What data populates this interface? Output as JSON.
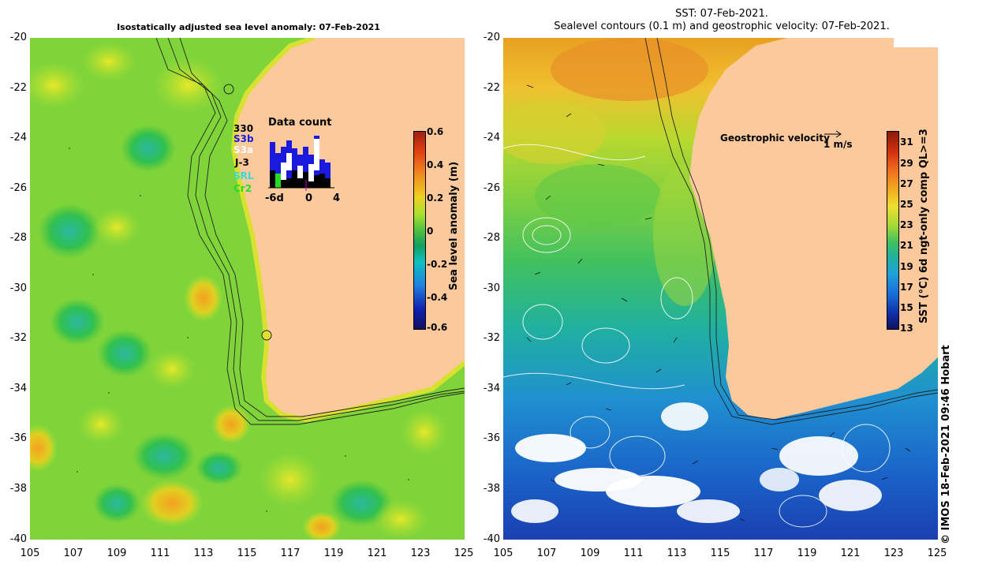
{
  "left_map": {
    "title": "Isostatically adjusted sea level anomaly: 07-Feb-2021",
    "colorbar": {
      "label": "Sea level anomaly (m)",
      "ticks": [
        "0.6",
        "0.4",
        "0.2",
        "0",
        "-0.2",
        "-0.4",
        "-0.6"
      ],
      "range": [
        -0.6,
        0.6
      ]
    },
    "data_count": {
      "title": "Data count",
      "max_label": "330",
      "satellites": [
        "S3b",
        "S3a",
        "J-3",
        "SRL",
        "Cr2"
      ],
      "satellite_colors": [
        "#1a1adf",
        "#ffffff",
        "#000000",
        "#33dddd",
        "#22dd22"
      ],
      "x_ticks": [
        "-6d",
        "0",
        "4"
      ]
    }
  },
  "right_map": {
    "title_line1": "SST: 07-Feb-2021.",
    "title_line2": "Sealevel contours (0.1 m) and geostrophic velocity: 07-Feb-2021.",
    "velocity_legend": "Geostrophic velocity",
    "velocity_scale": "1 m/s",
    "colorbar": {
      "label": "SST (°C) 6d ngt-only comp QL>=3",
      "ticks": [
        "31",
        "29",
        "27",
        "25",
        "23",
        "21",
        "19",
        "17",
        "15",
        "13"
      ],
      "range": [
        13,
        32
      ]
    }
  },
  "axes": {
    "latitude_ticks": [
      "-20",
      "-22",
      "-24",
      "-26",
      "-28",
      "-30",
      "-32",
      "-34",
      "-36",
      "-38",
      "-40"
    ],
    "longitude_ticks": [
      "105",
      "107",
      "109",
      "111",
      "113",
      "115",
      "117",
      "119",
      "121",
      "123",
      "125"
    ]
  },
  "colors": {
    "land": "#fbc99b",
    "sla_background": "#7fd43a",
    "sst_warm": "#e0801a",
    "sst_cool": "#1a8ad0"
  },
  "credit": "© IMOS 18-Feb-2021 09:46 Hobart"
}
